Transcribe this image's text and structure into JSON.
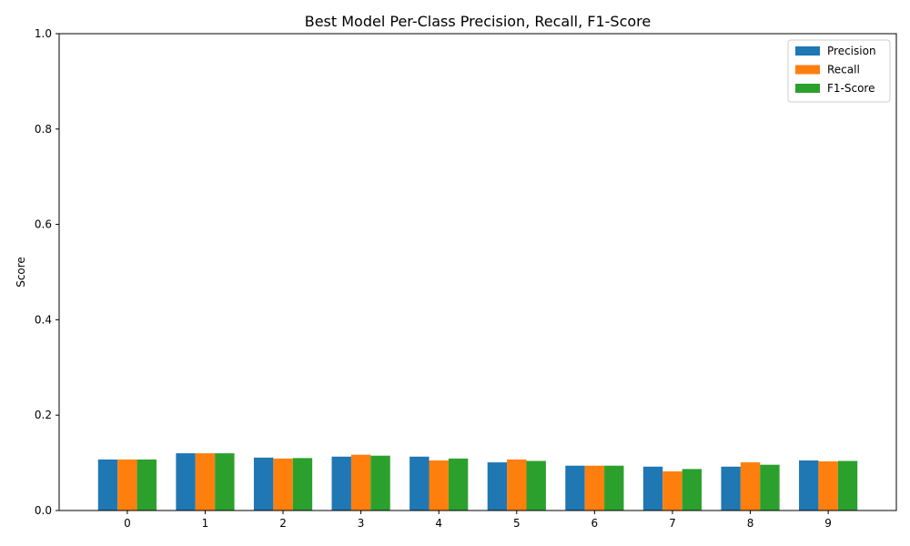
{
  "chart_data": {
    "type": "bar",
    "title": "Best Model Per-Class Precision, Recall, F1-Score",
    "xlabel": "",
    "ylabel": "Score",
    "ylim": [
      0,
      1.0
    ],
    "yticks": [
      "0.0",
      "0.2",
      "0.4",
      "0.6",
      "0.8",
      "1.0"
    ],
    "categories": [
      "0",
      "1",
      "2",
      "3",
      "4",
      "5",
      "6",
      "7",
      "8",
      "9"
    ],
    "series": [
      {
        "name": "Precision",
        "color": "#1f77b4",
        "values": [
          0.107,
          0.12,
          0.111,
          0.113,
          0.113,
          0.101,
          0.094,
          0.092,
          0.092,
          0.105
        ]
      },
      {
        "name": "Recall",
        "color": "#ff7f0e",
        "values": [
          0.107,
          0.12,
          0.109,
          0.117,
          0.105,
          0.107,
          0.094,
          0.082,
          0.101,
          0.103
        ]
      },
      {
        "name": "F1-Score",
        "color": "#2ca02c",
        "values": [
          0.107,
          0.12,
          0.11,
          0.115,
          0.109,
          0.104,
          0.094,
          0.087,
          0.096,
          0.104
        ]
      }
    ],
    "grid": false,
    "legend_position": "top-right"
  }
}
